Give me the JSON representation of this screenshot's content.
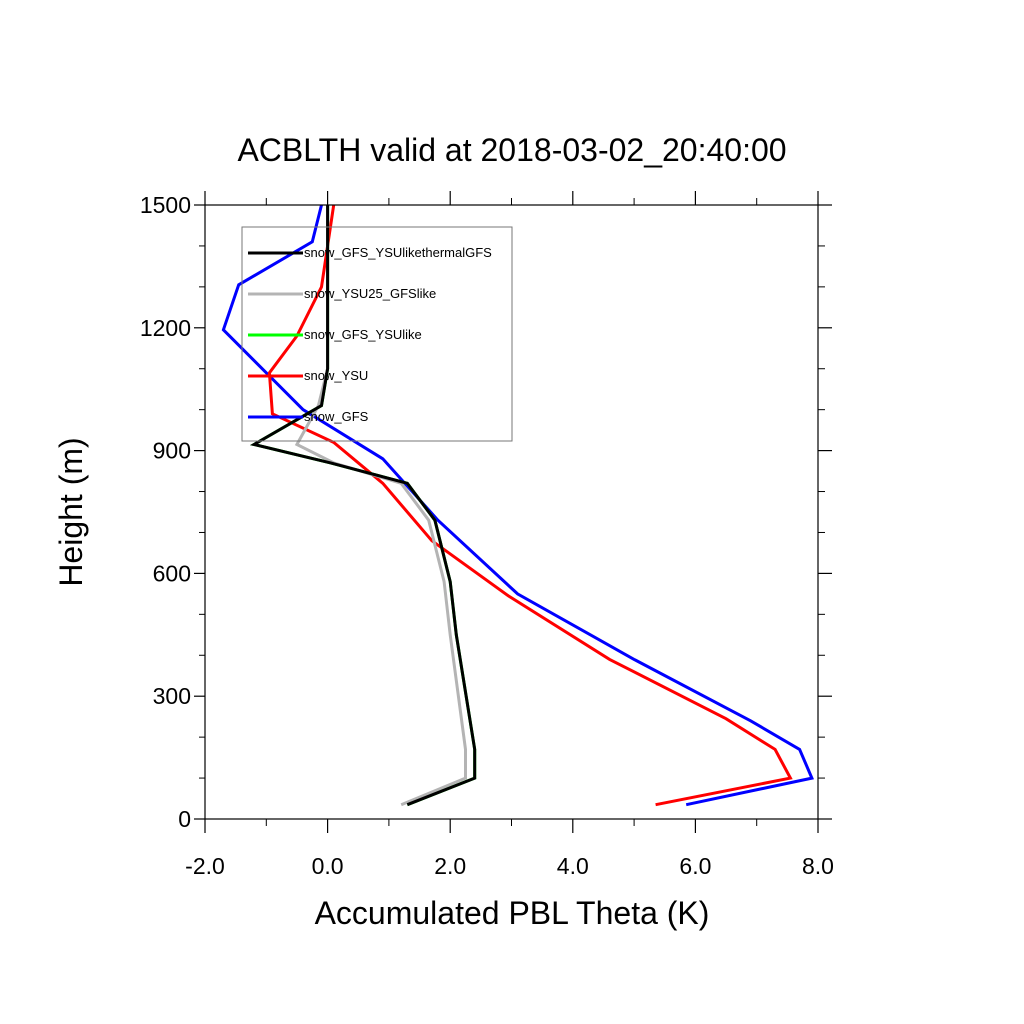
{
  "chart_data": {
    "type": "line",
    "title": "ACBLTH valid at 2018-03-02_20:40:00",
    "xlabel": "Accumulated PBL Theta (K)",
    "ylabel": "Height (m)",
    "xlim": [
      -2.0,
      8.0
    ],
    "ylim": [
      0,
      1500
    ],
    "x_ticks": [
      -2.0,
      0.0,
      2.0,
      4.0,
      6.0,
      8.0
    ],
    "x_tick_labels": [
      "-2.0",
      "0.0",
      "2.0",
      "4.0",
      "6.0",
      "8.0"
    ],
    "y_ticks": [
      0,
      300,
      600,
      900,
      1200,
      1500
    ],
    "y_tick_labels": [
      "0",
      "300",
      "600",
      "900",
      "1200",
      "1500"
    ],
    "grid": false,
    "legend_position": "top-left",
    "series": [
      {
        "name": "snow_GFS",
        "color": "#0000ff",
        "points": [
          [
            5.85,
            35
          ],
          [
            7.9,
            100
          ],
          [
            7.7,
            170
          ],
          [
            6.9,
            240
          ],
          [
            5.0,
            390
          ],
          [
            3.1,
            550
          ],
          [
            1.8,
            730
          ],
          [
            0.9,
            880
          ],
          [
            -0.4,
            1000
          ],
          [
            -1.7,
            1195
          ],
          [
            -1.45,
            1305
          ],
          [
            -0.25,
            1410
          ],
          [
            -0.1,
            1500
          ]
        ]
      },
      {
        "name": "snow_YSU",
        "color": "#ff0000",
        "points": [
          [
            5.35,
            35
          ],
          [
            7.55,
            100
          ],
          [
            7.3,
            170
          ],
          [
            6.5,
            245
          ],
          [
            4.6,
            390
          ],
          [
            2.95,
            545
          ],
          [
            1.7,
            680
          ],
          [
            0.9,
            820
          ],
          [
            0.1,
            920
          ],
          [
            -0.9,
            990
          ],
          [
            -0.95,
            1090
          ],
          [
            -0.5,
            1180
          ],
          [
            -0.1,
            1300
          ],
          [
            0.1,
            1500
          ]
        ]
      },
      {
        "name": "snow_GFS_YSUlike",
        "color": "#00ff00",
        "points": [
          [
            1.3,
            35
          ],
          [
            2.4,
            100
          ],
          [
            2.4,
            170
          ],
          [
            2.1,
            450
          ],
          [
            2.0,
            580
          ],
          [
            1.75,
            730
          ],
          [
            1.3,
            820
          ],
          [
            0.05,
            870
          ],
          [
            -1.2,
            915
          ],
          [
            -0.1,
            1010
          ],
          [
            0.0,
            1100
          ],
          [
            0.0,
            1300
          ],
          [
            0.0,
            1500
          ]
        ]
      },
      {
        "name": "snow_YSU25_GFSlike",
        "color": "#b4b4b4",
        "points": [
          [
            1.2,
            35
          ],
          [
            2.25,
            100
          ],
          [
            2.25,
            170
          ],
          [
            2.0,
            450
          ],
          [
            1.9,
            580
          ],
          [
            1.65,
            730
          ],
          [
            1.2,
            820
          ],
          [
            0.1,
            870
          ],
          [
            -0.5,
            915
          ],
          [
            -0.15,
            1010
          ],
          [
            0.0,
            1100
          ],
          [
            0.0,
            1300
          ],
          [
            0.0,
            1500
          ]
        ]
      },
      {
        "name": "snow_GFS_YSUlikethermalGFS",
        "color": "#000000",
        "points": [
          [
            1.3,
            35
          ],
          [
            2.4,
            100
          ],
          [
            2.4,
            170
          ],
          [
            2.1,
            450
          ],
          [
            2.0,
            580
          ],
          [
            1.75,
            730
          ],
          [
            1.3,
            820
          ],
          [
            0.05,
            870
          ],
          [
            -1.2,
            915
          ],
          [
            -0.1,
            1010
          ],
          [
            0.0,
            1100
          ],
          [
            0.0,
            1300
          ],
          [
            0.0,
            1500
          ]
        ]
      }
    ],
    "legend_order": [
      "snow_GFS_YSUlikethermalGFS",
      "snow_YSU25_GFSlike",
      "snow_GFS_YSUlike",
      "snow_YSU",
      "snow_GFS"
    ]
  }
}
